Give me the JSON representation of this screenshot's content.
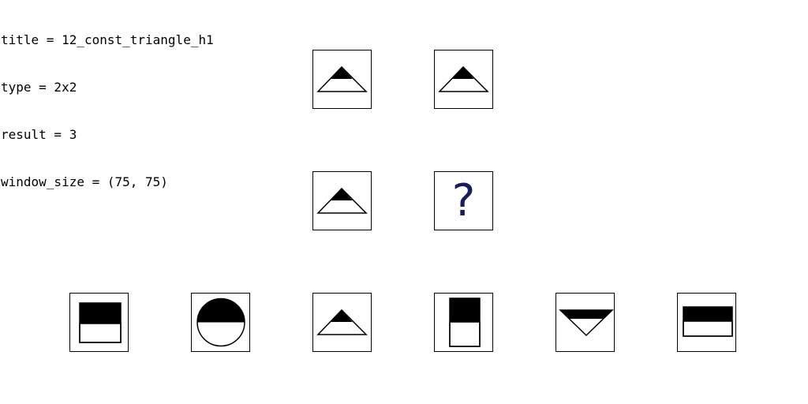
{
  "meta": {
    "lines": [
      "title = 12_const_triangle_h1",
      "type = 2x2",
      "result = 3",
      "window_size = (75, 75)"
    ]
  },
  "puzzle": {
    "grid": [
      {
        "cell": "r1c1",
        "shape": "triangle-up-top-black"
      },
      {
        "cell": "r1c2",
        "shape": "triangle-up-top-black"
      },
      {
        "cell": "r2c1",
        "shape": "triangle-up-top-black"
      },
      {
        "cell": "r2c2",
        "shape": "unknown",
        "label": "?"
      }
    ],
    "options": [
      {
        "index": 1,
        "shape": "square-top-black"
      },
      {
        "index": 2,
        "shape": "circle-top-black"
      },
      {
        "index": 3,
        "shape": "triangle-up-top-black"
      },
      {
        "index": 4,
        "shape": "tall-rect-top-black"
      },
      {
        "index": 5,
        "shape": "triangle-down-top-black"
      },
      {
        "index": 6,
        "shape": "wide-rect-top-black"
      }
    ]
  }
}
